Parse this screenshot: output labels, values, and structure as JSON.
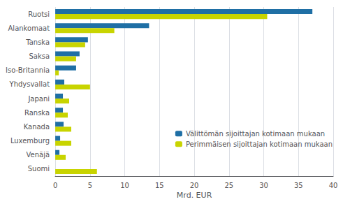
{
  "chart_data": {
    "type": "bar",
    "orientation": "horizontal",
    "categories": [
      "Ruotsi",
      "Alankomaat",
      "Tanska",
      "Saksa",
      "Iso-Britannia",
      "Yhdysvallat",
      "Japani",
      "Ranska",
      "Kanada",
      "Luxemburg",
      "Venäjä",
      "Suomi"
    ],
    "series": [
      {
        "name": "Välittömän sijoittajan kotimaan mukaan",
        "color": "#1f6fa5",
        "values": [
          37.0,
          13.5,
          4.7,
          3.5,
          3.0,
          1.3,
          1.1,
          1.1,
          1.2,
          0.7,
          0.6,
          0.0
        ]
      },
      {
        "name": "Perimmäisen sijoittajan kotimaan mukaan",
        "color": "#c8d400",
        "values": [
          30.5,
          8.5,
          4.3,
          3.0,
          0.5,
          5.0,
          2.0,
          1.8,
          2.3,
          2.3,
          1.5,
          6.0
        ]
      }
    ],
    "xlabel": "Mrd. EUR",
    "xlim": [
      0,
      40
    ],
    "xticks": [
      0,
      5,
      10,
      15,
      20,
      25,
      30,
      35,
      40
    ],
    "grid": true,
    "legend": "right"
  }
}
